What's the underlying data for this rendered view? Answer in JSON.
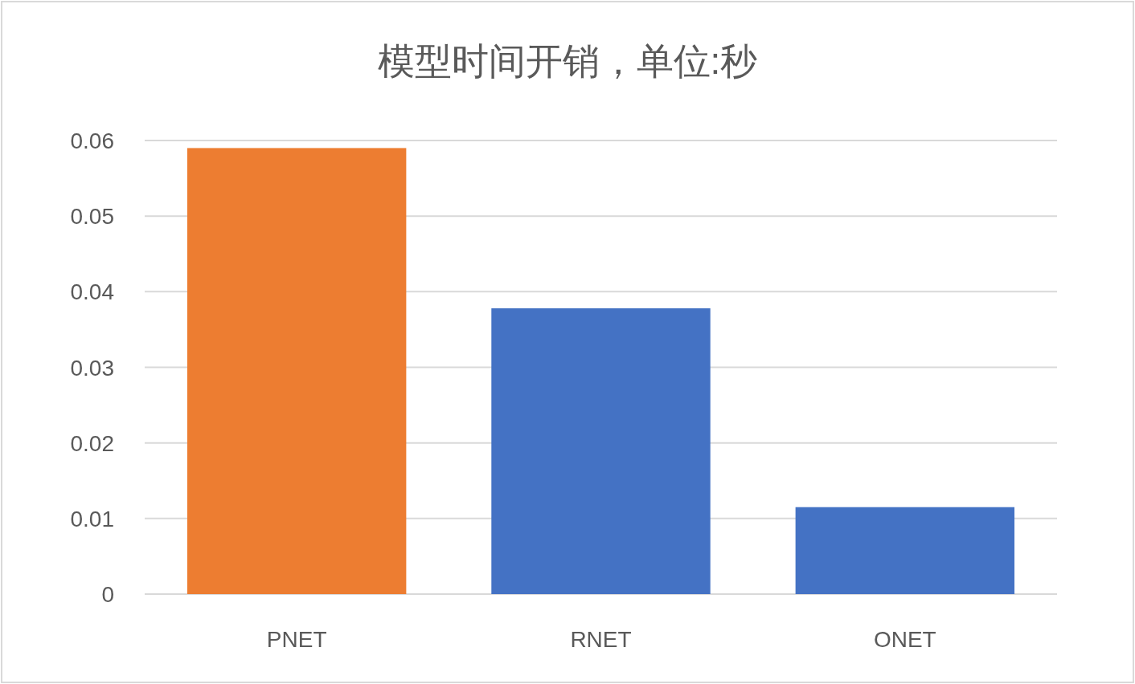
{
  "chart_data": {
    "type": "bar",
    "title": "模型时间开销，单位:秒",
    "categories": [
      "PNET",
      "RNET",
      "ONET"
    ],
    "values": [
      0.059,
      0.0378,
      0.0115
    ],
    "colors": [
      "#ed7d31",
      "#4472c4",
      "#4472c4"
    ],
    "ylim": [
      0,
      0.06
    ],
    "yticks": [
      0,
      0.01,
      0.02,
      0.03,
      0.04,
      0.05,
      0.06
    ],
    "grid": "y"
  }
}
